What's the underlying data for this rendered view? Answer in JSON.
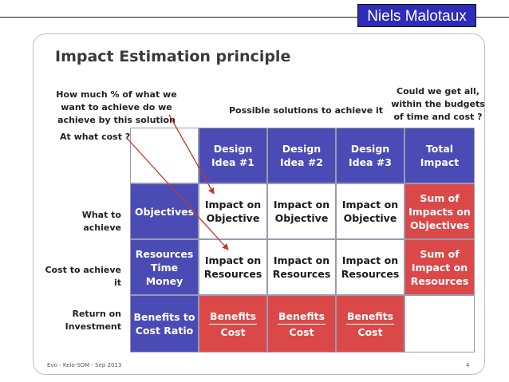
{
  "badge": "Niels Malotaux",
  "title": "Impact Estimation principle",
  "notes": {
    "how_much": "How much % of what we\nwant to achieve do we\nachieve  by this solution",
    "at_what_cost": "At what cost ?",
    "possible": "Possible solutions to achieve it",
    "could_we": "Could we get all,\nwithin the budgets\nof time and cost ?"
  },
  "row_labels": {
    "what": "What to achieve",
    "cost": "Cost to achieve it",
    "roi": "Return on\nInvestment"
  },
  "table": {
    "headers": [
      "Design\nIdea #1",
      "Design\nIdea #2",
      "Design\nIdea #3",
      "Total\nImpact"
    ],
    "row1": [
      "Objectives",
      "Impact on\nObjective",
      "Impact on\nObjective",
      "Impact on\nObjective",
      "Sum of\nImpacts on\nObjectives"
    ],
    "row2": [
      "Resources\nTime\nMoney",
      "Impact on\nResources",
      "Impact on\nResources",
      "Impact on\nResources",
      "Sum of\nImpact on\nResources"
    ],
    "row3": [
      "Benefits to\nCost Ratio"
    ],
    "ratio": {
      "numerator": "Benefits",
      "denominator": "Cost"
    }
  },
  "footer": "Evo - Keio-SDM - Sep 2013",
  "page_number": "4",
  "colors": {
    "blue": "#4b4bb6",
    "red": "#db4848",
    "badge": "#2d2db8",
    "arrow": "#c0392b"
  }
}
